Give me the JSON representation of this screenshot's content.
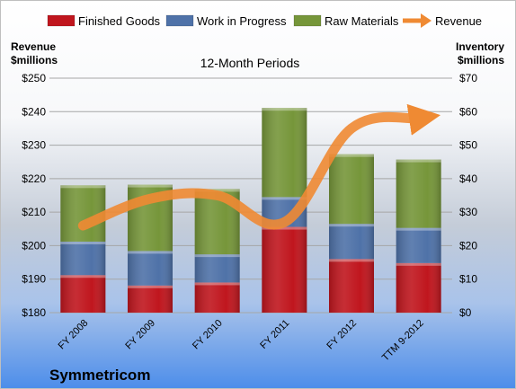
{
  "chart_data": {
    "type": "bar",
    "subtitle": "12-Month Periods",
    "company": "Symmetricom",
    "left_axis": {
      "label_line1": "Revenue",
      "label_line2": "$millions",
      "ylim": [
        180,
        250
      ],
      "ticks": [
        "$180",
        "$190",
        "$200",
        "$210",
        "$220",
        "$230",
        "$240",
        "$250"
      ],
      "tick_values": [
        180,
        190,
        200,
        210,
        220,
        230,
        240,
        250
      ]
    },
    "right_axis": {
      "label_line1": "Inventory",
      "label_line2": "$millions",
      "ylim": [
        0,
        70
      ],
      "ticks": [
        "$0",
        "$10",
        "$20",
        "$30",
        "$40",
        "$50",
        "$60",
        "$70"
      ],
      "tick_values": [
        0,
        10,
        20,
        30,
        40,
        50,
        60,
        70
      ]
    },
    "categories": [
      "FY 2008",
      "FY 2009",
      "FY 2010",
      "FY 2011",
      "FY 2012",
      "TTM 9-2012"
    ],
    "stacked_series": [
      {
        "name": "Finished Goods",
        "color": "#C0161E",
        "values": [
          11.2,
          8.1,
          9.0,
          25.6,
          16.0,
          14.8
        ]
      },
      {
        "name": "Work in Progress",
        "color": "#4F72A8",
        "values": [
          10.0,
          10.3,
          8.4,
          8.9,
          10.5,
          10.5
        ]
      },
      {
        "name": "Raw Materials",
        "color": "#76963A",
        "values": [
          16.8,
          19.8,
          19.5,
          26.6,
          20.8,
          20.4
        ]
      }
    ],
    "line_series": {
      "name": "Revenue",
      "axis": "left",
      "color": "#EF8A33",
      "values": [
        206,
        214,
        215,
        207,
        235,
        238
      ]
    },
    "legend_position": "top",
    "grid": true
  }
}
